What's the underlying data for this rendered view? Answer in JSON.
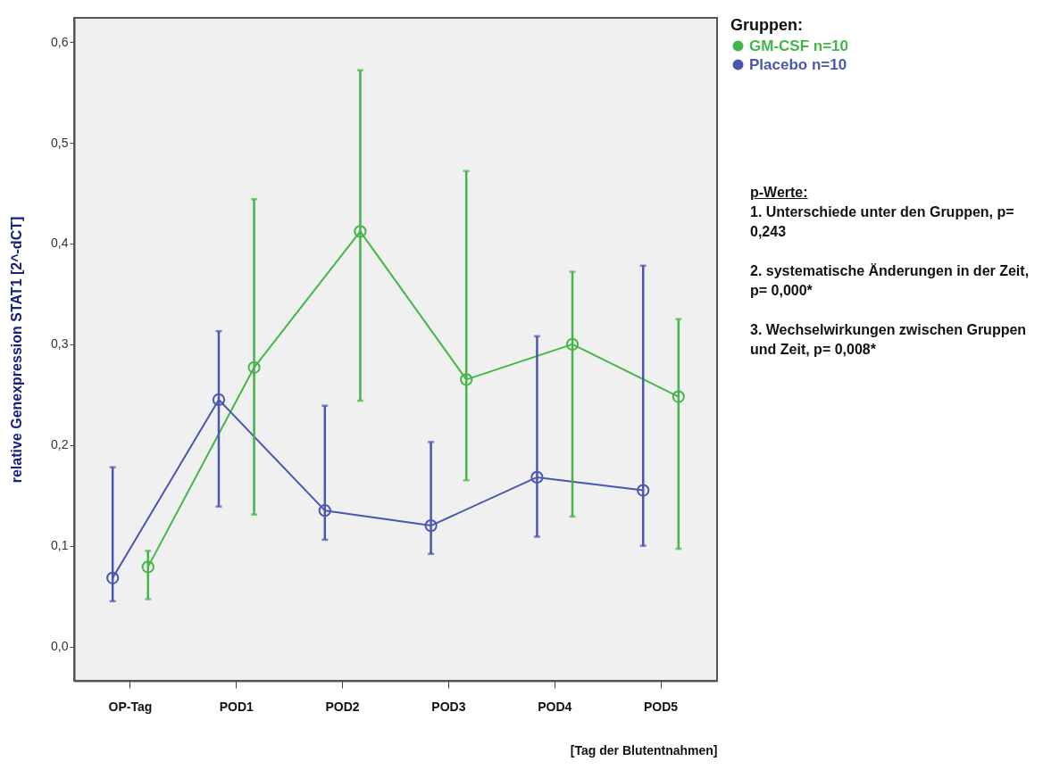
{
  "chart_data": {
    "type": "line",
    "ylabel": "relative Genexpression STAT1    [2^-dCT]",
    "xlabel": "[Tag der Blutentnahmen]",
    "legend_title": "Gruppen:",
    "legend": "top right",
    "marker": "circle",
    "grid": false,
    "categories": [
      "OP-Tag",
      "POD1",
      "POD2",
      "POD3",
      "POD4",
      "POD5"
    ],
    "ylim": [
      -0.034,
      0.624
    ],
    "yticks": [
      {
        "value": 0,
        "label": "0,0"
      },
      {
        "value": 0.1,
        "label": "0,1"
      },
      {
        "value": 0.2,
        "label": "0,2"
      },
      {
        "value": 0.3,
        "label": "0,3"
      },
      {
        "value": 0.4,
        "label": "0,4"
      },
      {
        "value": 0.5,
        "label": "0,5"
      },
      {
        "value": 0.6,
        "label": "0,6"
      }
    ],
    "series": [
      {
        "name": "GM-CSF     n=10",
        "color": "#44b649",
        "values": [
          0.079,
          0.277,
          0.412,
          0.265,
          0.3,
          0.248
        ],
        "errors": [
          [
            0.047,
            0.095
          ],
          [
            0.131,
            0.444
          ],
          [
            0.244,
            0.572
          ],
          [
            0.165,
            0.472
          ],
          [
            0.129,
            0.372
          ],
          [
            0.097,
            0.325
          ]
        ]
      },
      {
        "name": "Placebo     n=10",
        "color": "#4a56b0",
        "values": [
          0.068,
          0.245,
          0.135,
          0.12,
          0.168,
          0.155
        ],
        "errors": [
          [
            0.045,
            0.178
          ],
          [
            0.139,
            0.313
          ],
          [
            0.106,
            0.239
          ],
          [
            0.092,
            0.203
          ],
          [
            0.109,
            0.308
          ],
          [
            0.1,
            0.378
          ]
        ]
      }
    ],
    "annotations": [
      "p-Werte:",
      "1. Unterschiede unter den Gruppen, p= 0,243",
      "2. systematische Änderungen in der Zeit, p= 0,000*",
      "3. Wechselwirkungen zwischen Gruppen und Zeit, p= 0,008*"
    ]
  }
}
